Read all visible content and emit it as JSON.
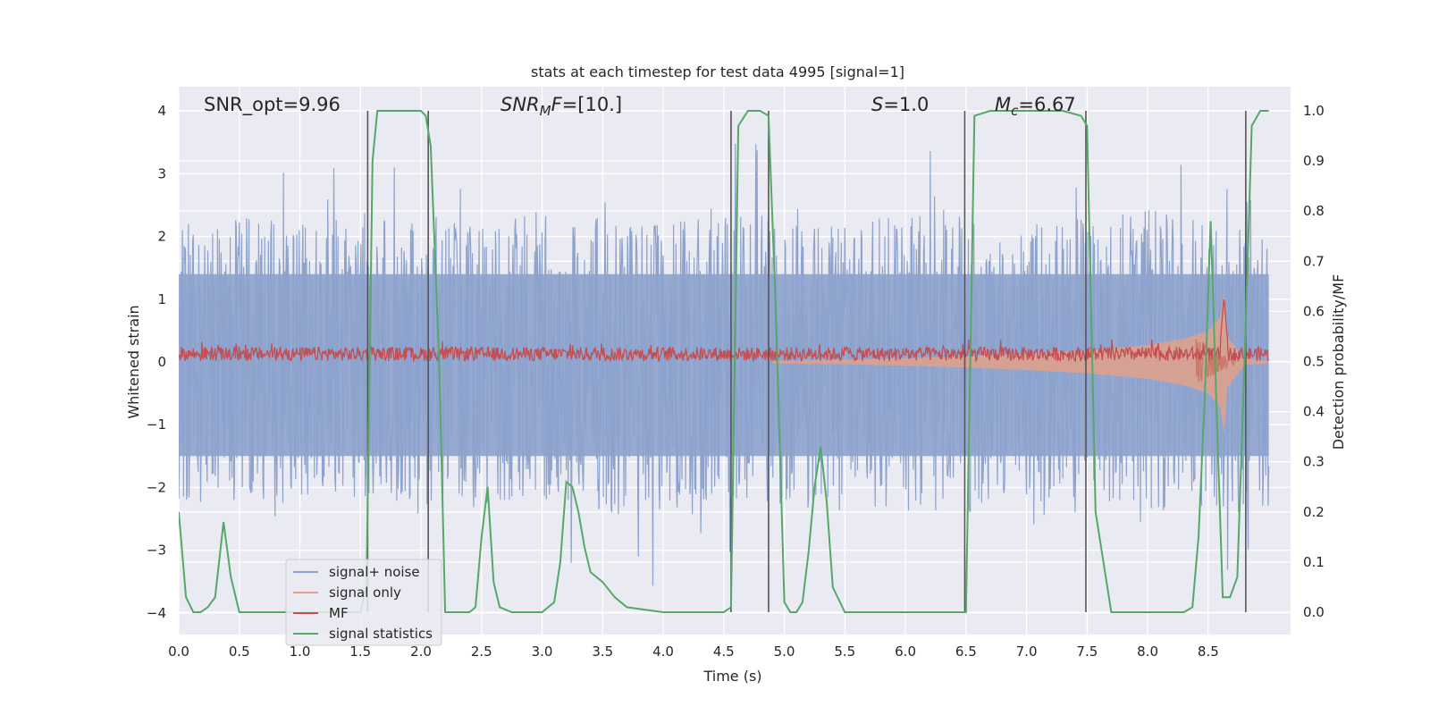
{
  "chart_data": {
    "type": "line",
    "title": "stats at each timestep for test data 4995 [signal=1]",
    "xlabel": "Time (s)",
    "ylabel": "Whitened strain",
    "y2label": "Detection probability/MF",
    "xlim": [
      0,
      9
    ],
    "ylim": [
      -4.3,
      4.3
    ],
    "y2lim": [
      -0.05,
      1.05
    ],
    "xticks": [
      "0.0",
      "0.5",
      "1.0",
      "1.5",
      "2.0",
      "2.5",
      "3.0",
      "3.5",
      "4.0",
      "4.5",
      "5.0",
      "5.5",
      "6.0",
      "6.5",
      "7.0",
      "7.5",
      "8.0",
      "8.5"
    ],
    "yticks": [
      "4",
      "3",
      "2",
      "1",
      "0",
      "−1",
      "−2",
      "−3",
      "−4"
    ],
    "y2ticks": [
      "1.0",
      "0.9",
      "0.8",
      "0.7",
      "0.6",
      "0.5",
      "0.4",
      "0.3",
      "0.2",
      "0.1",
      "0.0"
    ],
    "grid": true,
    "legend_position": "lower-left",
    "annotations": [
      {
        "parts": [
          {
            "t": "SNR_opt=9.96",
            "i": false
          }
        ]
      },
      {
        "parts": [
          {
            "t": "SNR",
            "i": true
          },
          {
            "t": "M",
            "i": true,
            "sub": true
          },
          {
            "t": "F",
            "i": true
          },
          {
            "t": "=[10.]",
            "i": false
          }
        ]
      },
      {
        "parts": [
          {
            "t": "S",
            "i": true
          },
          {
            "t": "=1.0",
            "i": false
          }
        ]
      },
      {
        "parts": [
          {
            "t": "M",
            "i": true
          },
          {
            "t": "c",
            "i": true,
            "sub": true
          },
          {
            "t": "=6.67",
            "i": false
          }
        ]
      }
    ],
    "vertical_lines_x": [
      1.56,
      2.06,
      4.56,
      4.87,
      6.49,
      7.49,
      8.81
    ],
    "series": [
      {
        "name": "signal+ noise",
        "color": "#8da3cd",
        "description": "dense whitened strain noise, amplitude about ±2 with peaks to ±3.5",
        "envelope_upper": [
          2.2,
          2.3,
          2.2,
          2.4,
          2.2,
          2.3,
          2.5,
          2.2,
          2.3,
          2.4,
          2.2,
          2.3,
          2.4,
          2.2,
          2.3,
          2.5,
          2.3,
          2.2
        ],
        "envelope_lower": [
          -2.2,
          -2.4,
          -2.3,
          -2.2,
          -2.4,
          -2.3,
          -2.2,
          -2.5,
          -2.3,
          -2.2,
          -2.4,
          -2.3,
          -2.5,
          -2.2,
          -2.3,
          -2.4,
          -2.5,
          -2.3
        ]
      },
      {
        "name": "signal only",
        "color": "#e0a18a",
        "description": "chirp signal growing toward merger near t = 8.63 s",
        "x": [
          4.9,
          5.5,
          6.0,
          6.5,
          7.0,
          7.5,
          8.0,
          8.3,
          8.5,
          8.6,
          8.63,
          8.66,
          8.8,
          9.0
        ],
        "amplitude": [
          0.02,
          0.04,
          0.06,
          0.09,
          0.13,
          0.18,
          0.27,
          0.37,
          0.5,
          0.72,
          1.15,
          0.4,
          0.05,
          0.02
        ]
      },
      {
        "name": "MF",
        "color": "#c44e52",
        "axis": "y2",
        "description": "matched filter output, mostly 0.50–0.53 with a spike to 0.63 near t = 8.63 s",
        "baseline": 0.515,
        "peak_x": 8.63,
        "peak_y": 0.63
      },
      {
        "name": "signal statistics",
        "color": "#55a868",
        "axis": "y2",
        "x": [
          0.0,
          0.06,
          0.12,
          0.18,
          0.24,
          0.3,
          0.37,
          0.43,
          0.5,
          0.6,
          0.8,
          1.0,
          1.2,
          1.4,
          1.5,
          1.55,
          1.6,
          1.64,
          1.7,
          1.8,
          1.9,
          2.0,
          2.04,
          2.08,
          2.15,
          2.2,
          2.3,
          2.4,
          2.45,
          2.5,
          2.55,
          2.6,
          2.65,
          2.75,
          3.0,
          3.1,
          3.15,
          3.2,
          3.25,
          3.3,
          3.35,
          3.4,
          3.5,
          3.6,
          3.7,
          4.0,
          4.5,
          4.56,
          4.62,
          4.7,
          4.8,
          4.87,
          4.93,
          5.0,
          5.05,
          5.1,
          5.15,
          5.2,
          5.25,
          5.3,
          5.35,
          5.4,
          5.5,
          5.6,
          5.8,
          6.0,
          6.4,
          6.5,
          6.57,
          6.7,
          7.0,
          7.3,
          7.45,
          7.5,
          7.57,
          7.7,
          8.0,
          8.3,
          8.37,
          8.42,
          8.47,
          8.52,
          8.57,
          8.62,
          8.68,
          8.74,
          8.8,
          8.86,
          8.93,
          9.0
        ],
        "y": [
          0.2,
          0.03,
          0.0,
          0.0,
          0.01,
          0.03,
          0.18,
          0.07,
          0.0,
          0.0,
          0.0,
          0.0,
          0.0,
          0.0,
          0.0,
          0.05,
          0.9,
          1.0,
          1.0,
          1.0,
          1.0,
          1.0,
          0.99,
          0.93,
          0.5,
          0.0,
          0.0,
          0.0,
          0.01,
          0.15,
          0.25,
          0.06,
          0.01,
          0.0,
          0.0,
          0.02,
          0.1,
          0.26,
          0.25,
          0.2,
          0.13,
          0.08,
          0.06,
          0.03,
          0.01,
          0.0,
          0.0,
          0.01,
          0.97,
          1.0,
          1.0,
          0.99,
          0.6,
          0.02,
          0.0,
          0.0,
          0.02,
          0.12,
          0.25,
          0.33,
          0.22,
          0.05,
          0.0,
          0.0,
          0.0,
          0.0,
          0.0,
          0.0,
          0.99,
          1.0,
          1.0,
          1.0,
          0.99,
          0.97,
          0.2,
          0.0,
          0.0,
          0.0,
          0.01,
          0.15,
          0.42,
          0.78,
          0.4,
          0.03,
          0.03,
          0.07,
          0.5,
          0.97,
          1.0,
          1.0
        ]
      }
    ]
  }
}
